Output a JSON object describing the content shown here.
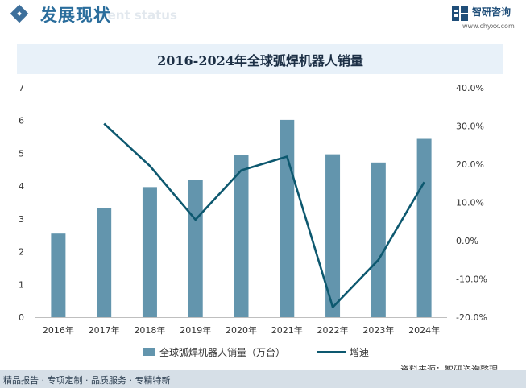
{
  "header": {
    "section_title": "发展现状",
    "section_title_en": "ment status",
    "brand_name": "智研咨询",
    "brand_url": "www.chyxx.com"
  },
  "chart_data": {
    "type": "bar",
    "title": "2016-2024年全球弧焊机器人销量",
    "categories": [
      "2016年",
      "2017年",
      "2018年",
      "2019年",
      "2020年",
      "2021年",
      "2022年",
      "2023年",
      "2024年"
    ],
    "series": [
      {
        "name": "全球弧焊机器人销量（万台）",
        "type": "bar",
        "axis": "left",
        "color": "#6395ad",
        "values": [
          2.55,
          3.32,
          3.97,
          4.18,
          4.95,
          6.02,
          4.97,
          4.72,
          5.44
        ]
      },
      {
        "name": "增速",
        "type": "line",
        "axis": "right",
        "color": "#0d586f",
        "values": [
          null,
          30.6,
          19.6,
          5.5,
          18.4,
          22.0,
          -17.4,
          -5.0,
          15.3
        ]
      }
    ],
    "y_left": {
      "min": 0,
      "max": 7,
      "ticks": [
        "0",
        "1",
        "2",
        "3",
        "4",
        "5",
        "6",
        "7"
      ]
    },
    "y_right": {
      "min": -20,
      "max": 40,
      "ticks": [
        "-20.0%",
        "-10.0%",
        "0.0%",
        "10.0%",
        "20.0%",
        "30.0%",
        "40.0%"
      ]
    },
    "grid": false,
    "legend_position": "bottom"
  },
  "source": "资料来源：智研咨询整理",
  "footer": "精品报告 · 专项定制 · 品质服务 · 专精特新"
}
